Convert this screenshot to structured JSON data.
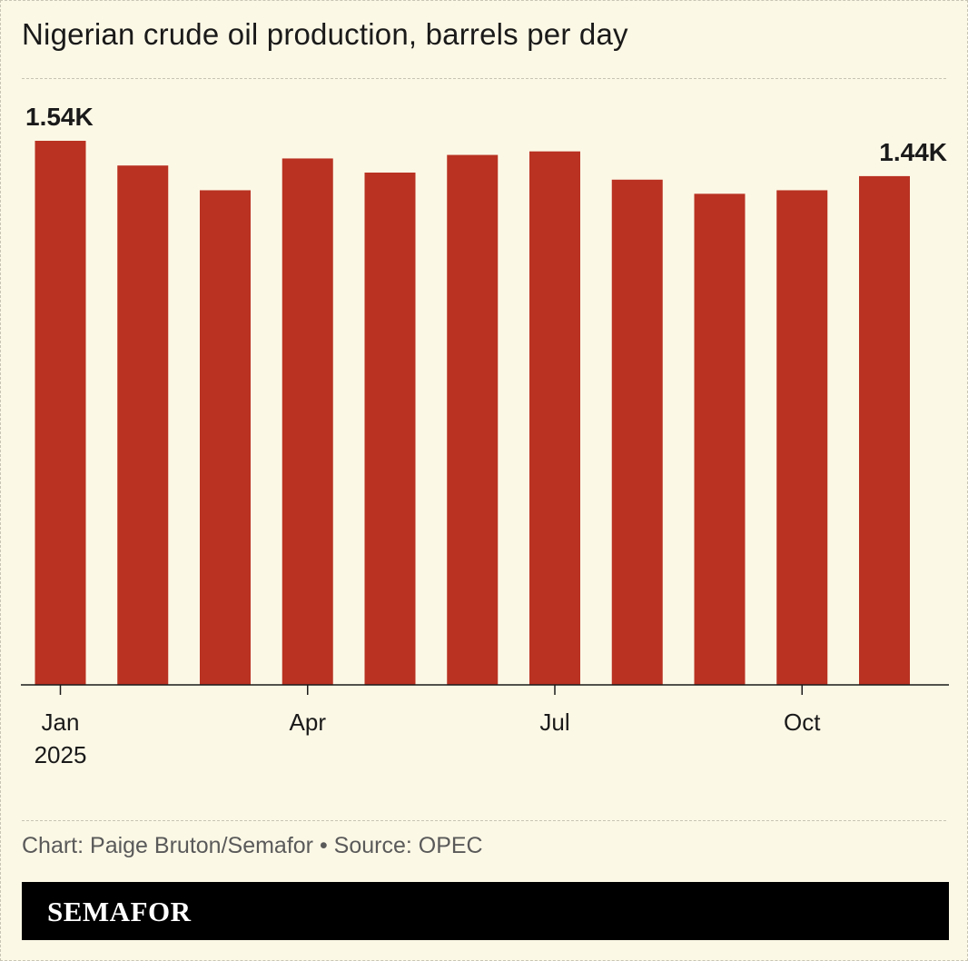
{
  "title": "Nigerian crude oil production, barrels per day",
  "credit": "Chart: Paige Bruton/Semafor • Source: OPEC",
  "brand": "SEMAFOR",
  "colors": {
    "background": "#fcf8e6",
    "bar": "#b93222",
    "text": "#1a1a1a"
  },
  "chart_data": {
    "type": "bar",
    "categories": [
      "2025-01",
      "2025-02",
      "2025-03",
      "2025-04",
      "2025-05",
      "2025-06",
      "2025-07",
      "2025-08",
      "2025-09",
      "2025-10",
      "2025-11"
    ],
    "values": [
      1.54,
      1.47,
      1.4,
      1.49,
      1.45,
      1.5,
      1.51,
      1.43,
      1.39,
      1.4,
      1.44
    ],
    "value_unit": "K",
    "tick_labels": [
      {
        "category_index": 0,
        "label": "Jan",
        "sublabel": "2025"
      },
      {
        "category_index": 3,
        "label": "Apr",
        "sublabel": ""
      },
      {
        "category_index": 6,
        "label": "Jul",
        "sublabel": ""
      },
      {
        "category_index": 9,
        "label": "Oct",
        "sublabel": ""
      }
    ],
    "annotations": [
      {
        "category_index": 0,
        "text": "1.54K"
      },
      {
        "category_index": 10,
        "text": "1.44K"
      }
    ],
    "ylim": [
      0,
      1.54
    ],
    "grid": false,
    "legend": "none"
  }
}
